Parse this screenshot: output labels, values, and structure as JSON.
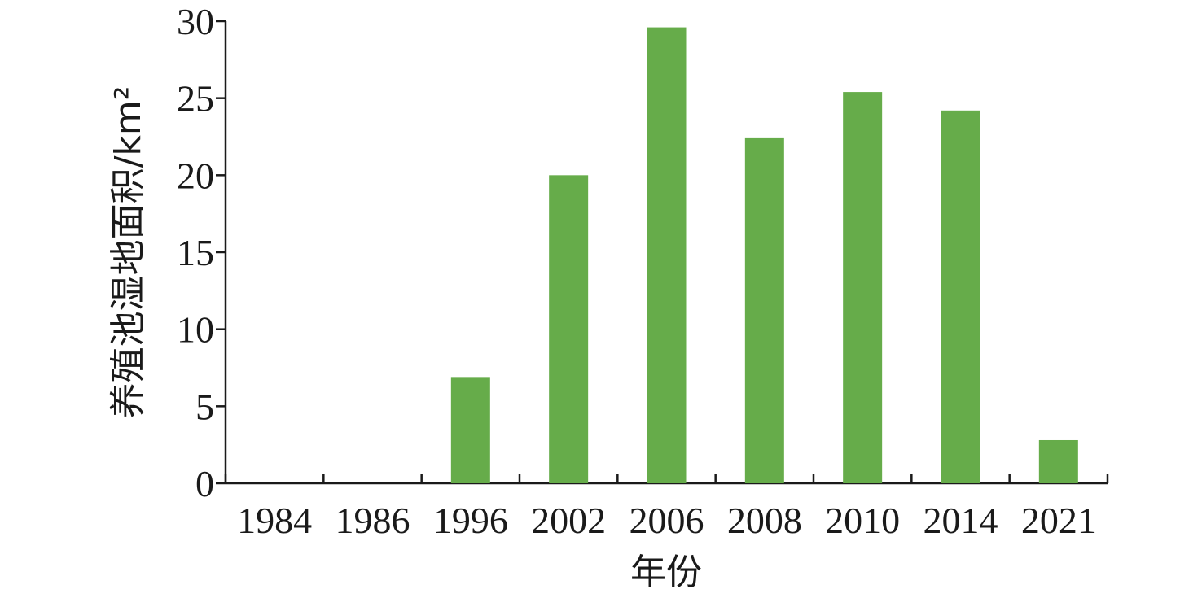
{
  "chart_data": {
    "type": "bar",
    "categories": [
      "1984",
      "1986",
      "1996",
      "2002",
      "2006",
      "2008",
      "2010",
      "2014",
      "2021"
    ],
    "values": [
      0,
      0,
      6.9,
      20.0,
      29.6,
      22.4,
      25.4,
      24.2,
      2.8
    ],
    "xlabel": "年份",
    "ylabel": "养殖池湿地面积/km²",
    "ylim": [
      0,
      30
    ],
    "yticks": [
      0,
      5,
      10,
      15,
      20,
      25,
      30
    ],
    "grid": false,
    "bar_color": "#66ac4a"
  }
}
